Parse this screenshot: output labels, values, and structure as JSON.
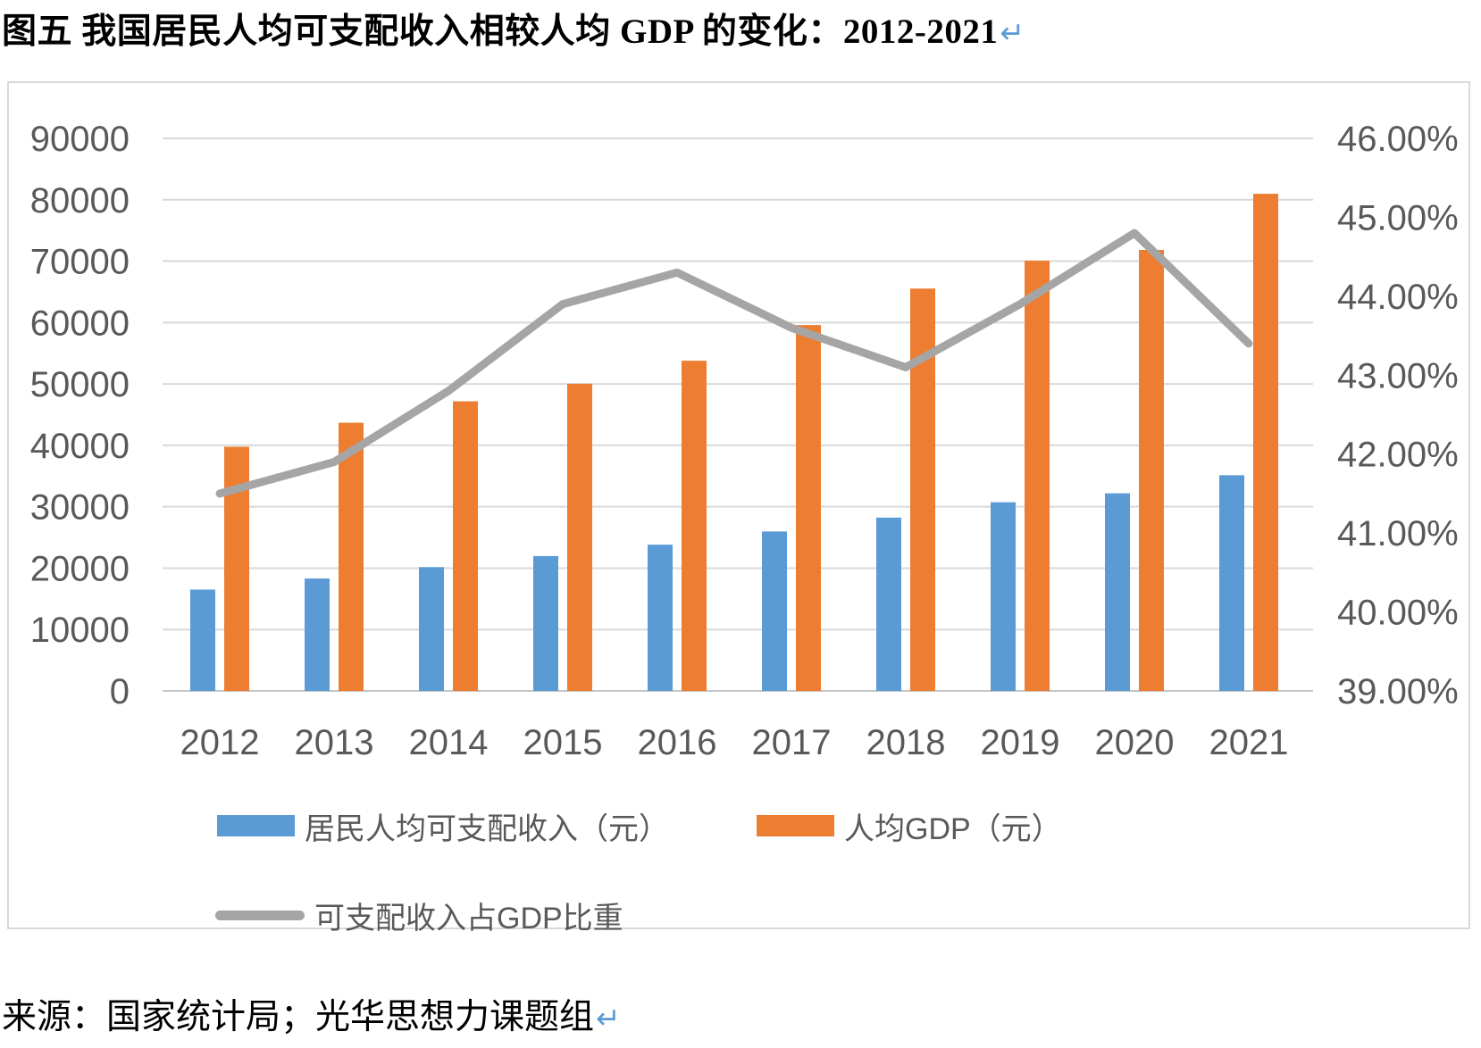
{
  "header": {
    "title": "图五 我国居民人均可支配收入相较人均 GDP 的变化：2012-2021",
    "paragraph_mark": "↵"
  },
  "footer": {
    "source": "来源：国家统计局；光华思想力课题组",
    "paragraph_mark": "↵"
  },
  "colors": {
    "income_bar": "#5B9BD5",
    "gdp_bar": "#ED7D31",
    "ratio_line": "#A5A5A5",
    "gridline": "#D9D9D9",
    "axis_line": "#C6C6C6",
    "chart_border": "#D9D9D9",
    "axis_text": "#595959",
    "paragraph_mark": "#5B9BD5"
  },
  "chart_data": {
    "type": "combo-bar-line",
    "title": "图五 我国居民人均可支配收入相较人均 GDP 的变化：2012-2021",
    "categories": [
      "2012",
      "2013",
      "2014",
      "2015",
      "2016",
      "2017",
      "2018",
      "2019",
      "2020",
      "2021"
    ],
    "series": [
      {
        "name": "居民人均可支配收入（元）",
        "type": "bar",
        "axis": "left",
        "color": "#5B9BD5",
        "values": [
          16510,
          18311,
          20167,
          21966,
          23821,
          25974,
          28228,
          30733,
          32189,
          35128
        ]
      },
      {
        "name": "人均GDP（元）",
        "type": "bar",
        "axis": "left",
        "color": "#ED7D31",
        "values": [
          39771,
          43684,
          47173,
          50028,
          53783,
          59592,
          65534,
          70078,
          71828,
          80976
        ]
      },
      {
        "name": "可支配收入占GDP比重",
        "type": "line",
        "axis": "right",
        "color": "#A5A5A5",
        "values": [
          41.5,
          41.9,
          42.8,
          43.9,
          44.3,
          43.6,
          43.1,
          43.9,
          44.8,
          43.4
        ]
      }
    ],
    "left_axis": {
      "min": 0,
      "max": 90000,
      "step": 10000,
      "tick_labels": [
        "0",
        "10000",
        "20000",
        "30000",
        "40000",
        "50000",
        "60000",
        "70000",
        "80000",
        "90000"
      ]
    },
    "right_axis": {
      "min": 39,
      "max": 46,
      "step": 1,
      "tick_labels": [
        "39.00%",
        "40.00%",
        "41.00%",
        "42.00%",
        "43.00%",
        "44.00%",
        "45.00%",
        "46.00%"
      ]
    },
    "grid": true,
    "legend_position": "bottom-left"
  }
}
